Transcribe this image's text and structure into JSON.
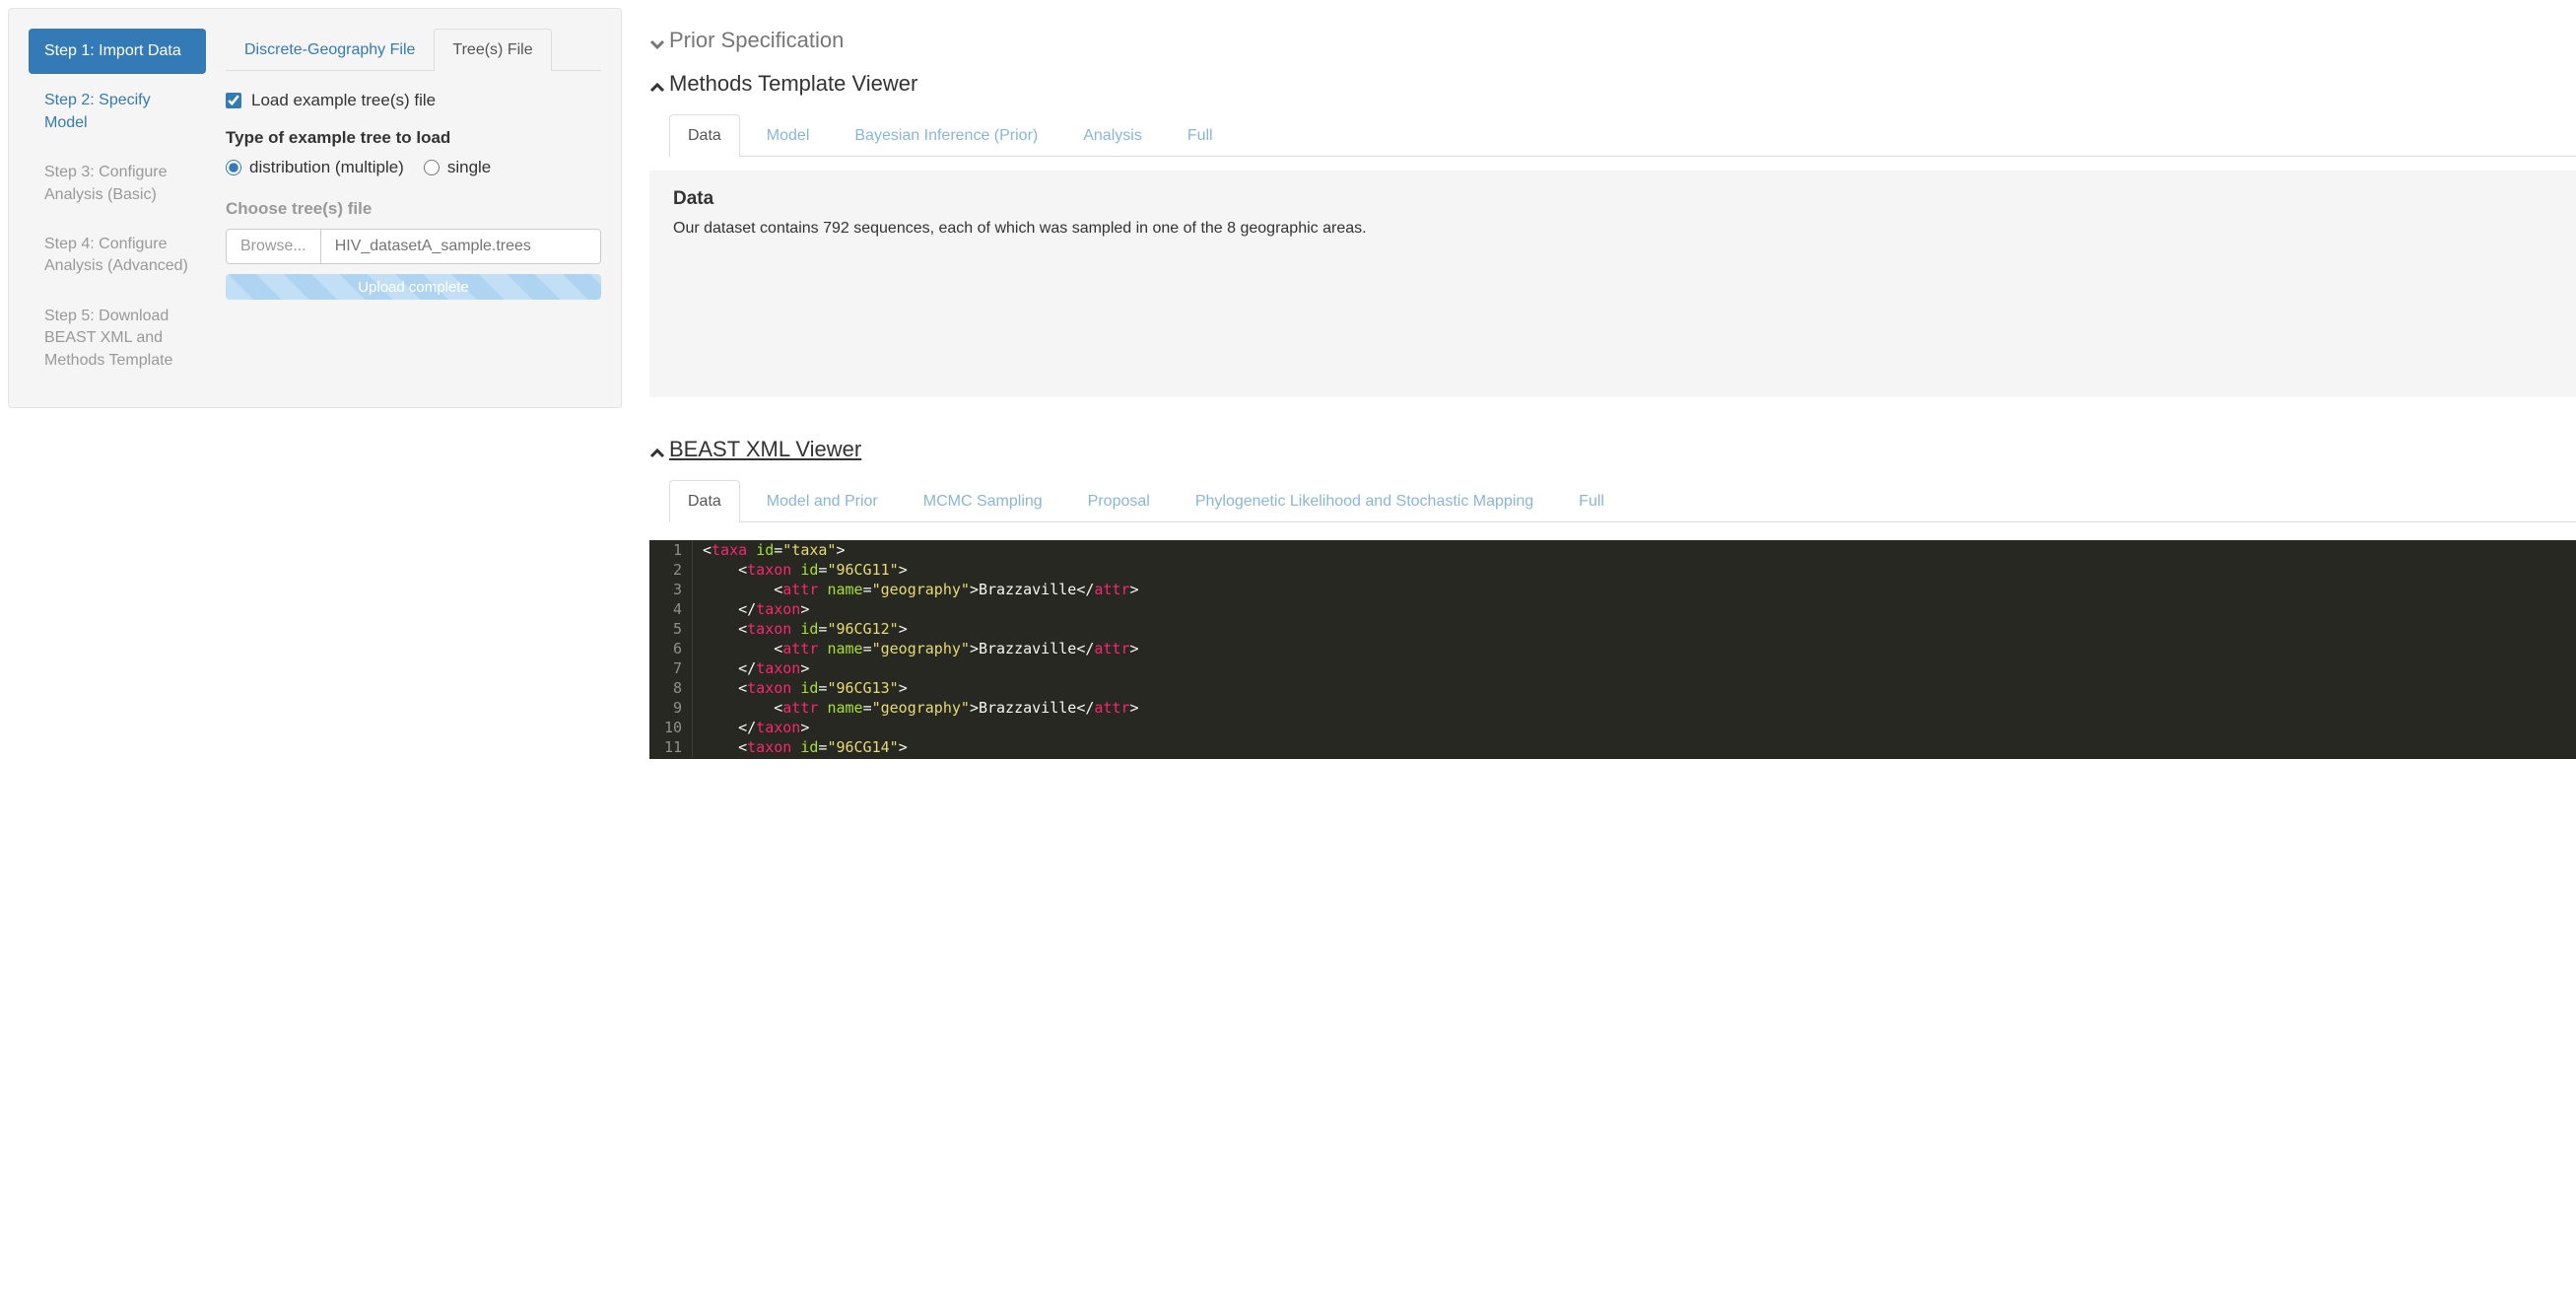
{
  "sidebar": {
    "steps": [
      {
        "label": "Step 1: Import Data",
        "state": "active"
      },
      {
        "label": "Step 2: Specify Model",
        "state": "link"
      },
      {
        "label": "Step 3: Configure Analysis (Basic)",
        "state": "disabled"
      },
      {
        "label": "Step 4: Configure Analysis (Advanced)",
        "state": "disabled"
      },
      {
        "label": "Step 5: Download BEAST XML and Methods Template",
        "state": "disabled"
      }
    ]
  },
  "import": {
    "tabs": [
      {
        "label": "Discrete-Geography File",
        "active": false
      },
      {
        "label": "Tree(s) File",
        "active": true
      }
    ],
    "load_example_label": "Load example tree(s) file",
    "load_example_checked": true,
    "tree_type_label": "Type of example tree to load",
    "tree_type_options": [
      {
        "label": "distribution (multiple)",
        "value": "dist",
        "checked": true
      },
      {
        "label": "single",
        "value": "single",
        "checked": false
      }
    ],
    "choose_file_label": "Choose tree(s) file",
    "browse_label": "Browse...",
    "file_placeholder": "HIV_datasetA_sample.trees",
    "upload_status": "Upload complete",
    "progress_colors": [
      "#c3dff5",
      "#aed4f2"
    ]
  },
  "prior_section": {
    "title": "Prior Specification",
    "expanded": false
  },
  "methods_viewer": {
    "title": "Methods Template Viewer",
    "expanded": true,
    "tabs": [
      "Data",
      "Model",
      "Bayesian Inference (Prior)",
      "Analysis",
      "Full"
    ],
    "active_tab": "Data",
    "body_title": "Data",
    "body_text": "Our dataset contains 792 sequences, each of which was sampled in one of the 8 geographic areas."
  },
  "xml_viewer": {
    "title": "BEAST XML Viewer",
    "expanded": true,
    "tabs": [
      "Data",
      "Model and Prior",
      "MCMC Sampling",
      "Proposal",
      "Phylogenetic Likelihood and Stochastic Mapping",
      "Full"
    ],
    "active_tab": "Data",
    "code": {
      "theme": {
        "bg": "#272822",
        "fg": "#f8f8f2",
        "gutter": "#8f908a",
        "tag": "#f92672",
        "attr": "#a6e22e",
        "string": "#e6db74"
      },
      "lines": [
        {
          "n": 1,
          "indent": 0,
          "tokens": [
            [
              "punc",
              "<"
            ],
            [
              "tag",
              "taxa"
            ],
            [
              "punc",
              " "
            ],
            [
              "attr",
              "id"
            ],
            [
              "punc",
              "="
            ],
            [
              "str",
              "\"taxa\""
            ],
            [
              "punc",
              ">"
            ]
          ]
        },
        {
          "n": 2,
          "indent": 1,
          "tokens": [
            [
              "punc",
              "<"
            ],
            [
              "tag",
              "taxon"
            ],
            [
              "punc",
              " "
            ],
            [
              "attr",
              "id"
            ],
            [
              "punc",
              "="
            ],
            [
              "str",
              "\"96CG11\""
            ],
            [
              "punc",
              ">"
            ]
          ]
        },
        {
          "n": 3,
          "indent": 2,
          "tokens": [
            [
              "punc",
              "<"
            ],
            [
              "tag",
              "attr"
            ],
            [
              "punc",
              " "
            ],
            [
              "attr",
              "name"
            ],
            [
              "punc",
              "="
            ],
            [
              "str",
              "\"geography\""
            ],
            [
              "punc",
              ">"
            ],
            [
              "text",
              "Brazzaville"
            ],
            [
              "punc",
              "</"
            ],
            [
              "tag",
              "attr"
            ],
            [
              "punc",
              ">"
            ]
          ]
        },
        {
          "n": 4,
          "indent": 1,
          "tokens": [
            [
              "punc",
              "</"
            ],
            [
              "tag",
              "taxon"
            ],
            [
              "punc",
              ">"
            ]
          ]
        },
        {
          "n": 5,
          "indent": 1,
          "tokens": [
            [
              "punc",
              "<"
            ],
            [
              "tag",
              "taxon"
            ],
            [
              "punc",
              " "
            ],
            [
              "attr",
              "id"
            ],
            [
              "punc",
              "="
            ],
            [
              "str",
              "\"96CG12\""
            ],
            [
              "punc",
              ">"
            ]
          ]
        },
        {
          "n": 6,
          "indent": 2,
          "tokens": [
            [
              "punc",
              "<"
            ],
            [
              "tag",
              "attr"
            ],
            [
              "punc",
              " "
            ],
            [
              "attr",
              "name"
            ],
            [
              "punc",
              "="
            ],
            [
              "str",
              "\"geography\""
            ],
            [
              "punc",
              ">"
            ],
            [
              "text",
              "Brazzaville"
            ],
            [
              "punc",
              "</"
            ],
            [
              "tag",
              "attr"
            ],
            [
              "punc",
              ">"
            ]
          ]
        },
        {
          "n": 7,
          "indent": 1,
          "tokens": [
            [
              "punc",
              "</"
            ],
            [
              "tag",
              "taxon"
            ],
            [
              "punc",
              ">"
            ]
          ]
        },
        {
          "n": 8,
          "indent": 1,
          "tokens": [
            [
              "punc",
              "<"
            ],
            [
              "tag",
              "taxon"
            ],
            [
              "punc",
              " "
            ],
            [
              "attr",
              "id"
            ],
            [
              "punc",
              "="
            ],
            [
              "str",
              "\"96CG13\""
            ],
            [
              "punc",
              ">"
            ]
          ]
        },
        {
          "n": 9,
          "indent": 2,
          "tokens": [
            [
              "punc",
              "<"
            ],
            [
              "tag",
              "attr"
            ],
            [
              "punc",
              " "
            ],
            [
              "attr",
              "name"
            ],
            [
              "punc",
              "="
            ],
            [
              "str",
              "\"geography\""
            ],
            [
              "punc",
              ">"
            ],
            [
              "text",
              "Brazzaville"
            ],
            [
              "punc",
              "</"
            ],
            [
              "tag",
              "attr"
            ],
            [
              "punc",
              ">"
            ]
          ]
        },
        {
          "n": 10,
          "indent": 1,
          "tokens": [
            [
              "punc",
              "</"
            ],
            [
              "tag",
              "taxon"
            ],
            [
              "punc",
              ">"
            ]
          ]
        },
        {
          "n": 11,
          "indent": 1,
          "tokens": [
            [
              "punc",
              "<"
            ],
            [
              "tag",
              "taxon"
            ],
            [
              "punc",
              " "
            ],
            [
              "attr",
              "id"
            ],
            [
              "punc",
              "="
            ],
            [
              "str",
              "\"96CG14\""
            ],
            [
              "punc",
              ">"
            ]
          ]
        }
      ]
    }
  }
}
